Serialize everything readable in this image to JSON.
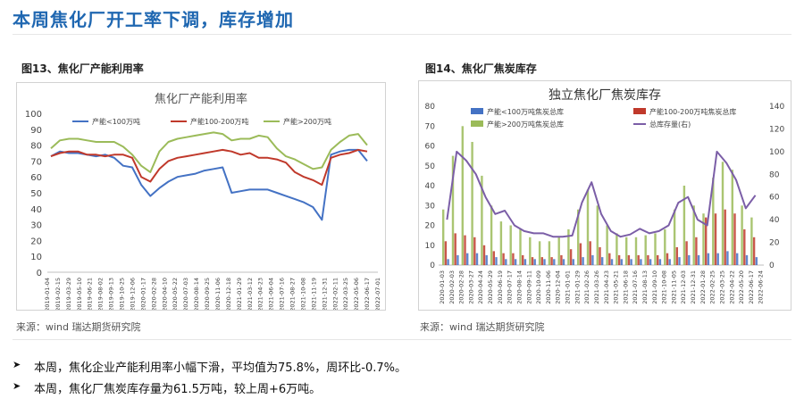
{
  "page": {
    "title": "本周焦化厂开工率下调，库存增加",
    "bullets": [
      "本周，焦化企业产能利用率小幅下滑，平均值为75.8%，周环比-0.7%。",
      "本周，焦化厂焦炭库存量为61.5万吨，较上周+6万吨。"
    ],
    "bullet_icon": "arrow-right-icon"
  },
  "left_panel": {
    "caption": "图13、焦化厂产能利用率",
    "source": "来源：wind   瑞达期货研究院"
  },
  "right_panel": {
    "caption": "图14、焦化厂焦炭库存",
    "source": "来源：wind   瑞达期货研究院"
  },
  "chart_data": [
    {
      "type": "line",
      "title": "焦化厂产能利用率",
      "xlabel": "",
      "ylabel": "",
      "ylim": [
        0,
        100
      ],
      "yticks": [
        0,
        10,
        20,
        30,
        40,
        50,
        60,
        70,
        80,
        90,
        100
      ],
      "grid": false,
      "legend_position": "top",
      "x_tick_labels": [
        "2019-01-04",
        "2019-02-15",
        "2019-03-29",
        "2019-05-10",
        "2019-06-21",
        "2019-08-02",
        "2019-09-13",
        "2019-10-25",
        "2019-12-06",
        "2020-01-17",
        "2020-02-28",
        "2020-04-10",
        "2020-05-22",
        "2020-07-03",
        "2020-08-14",
        "2020-09-25",
        "2020-11-06",
        "2020-12-18",
        "2021-01-29",
        "2021-03-12",
        "2021-04-23",
        "2021-06-04",
        "2021-07-16",
        "2021-08-27",
        "2021-10-08",
        "2021-11-19",
        "2021-12-31",
        "2022-02-11",
        "2022-03-25",
        "2022-05-06",
        "2022-06-17"
      ],
      "x_tick_last": "2022-07-01",
      "series": [
        {
          "name": "产能<100万吨",
          "color": "#4472c4",
          "values": [
            73,
            76,
            75,
            75,
            74,
            73,
            74,
            72,
            67,
            66,
            55,
            48,
            53,
            57,
            60,
            61,
            62,
            64,
            65,
            66,
            50,
            51,
            52,
            52,
            52,
            50,
            48,
            46,
            44,
            41,
            33,
            74,
            76,
            77,
            77,
            70
          ]
        },
        {
          "name": "产能100-200万吨",
          "color": "#c0392b",
          "values": [
            73,
            75,
            76,
            76,
            74,
            74,
            73,
            74,
            74,
            72,
            60,
            57,
            65,
            70,
            72,
            73,
            74,
            75,
            76,
            77,
            76,
            74,
            75,
            72,
            72,
            71,
            69,
            63,
            60,
            58,
            55,
            72,
            74,
            75,
            77,
            76
          ]
        },
        {
          "name": "产能>200万吨",
          "color": "#9bbb59",
          "values": [
            78,
            83,
            84,
            84,
            83,
            82,
            82,
            82,
            79,
            74,
            67,
            63,
            76,
            82,
            84,
            85,
            86,
            87,
            88,
            87,
            83,
            84,
            84,
            86,
            85,
            78,
            73,
            71,
            68,
            65,
            66,
            77,
            82,
            86,
            87,
            80
          ]
        }
      ]
    },
    {
      "type": "bar",
      "title": "独立焦化厂焦炭库存",
      "xlabel": "",
      "ylabel": "",
      "ylim": [
        0,
        80
      ],
      "yticks": [
        0,
        10,
        20,
        30,
        40,
        50,
        60,
        70,
        80
      ],
      "y2lim": [
        0,
        140
      ],
      "y2ticks": [
        0,
        20,
        40,
        60,
        80,
        100,
        120,
        140
      ],
      "grid": false,
      "legend_position": "top",
      "x_tick_labels": [
        "2020-01-03",
        "2020-02-03",
        "2020-02-28",
        "2020-03-27",
        "2020-04-24",
        "2020-05-29",
        "2020-06-19",
        "2020-07-17",
        "2020-08-14",
        "2020-09-11",
        "2020-10-09",
        "2020-11-06",
        "2020-12-04",
        "2021-01-01",
        "2021-01-29",
        "2021-02-26",
        "2021-03-26",
        "2021-04-23",
        "2021-05-21",
        "2021-06-18",
        "2021-07-16",
        "2021-08-13",
        "2021-09-10",
        "2021-10-08",
        "2021-11-05",
        "2021-12-03",
        "2021-12-31",
        "2022-01-28",
        "2022-02-25",
        "2022-03-25",
        "2022-04-22",
        "2022-05-20",
        "2022-06-17"
      ],
      "x_tick_last": "2022-06-24",
      "series": [
        {
          "name": "产能<100万吨焦炭总库",
          "color": "#4472c4",
          "axis": "left",
          "values": [
            3,
            5,
            6,
            6,
            5,
            4,
            3,
            3,
            3,
            3,
            3,
            3,
            3,
            3,
            4,
            5,
            4,
            3,
            3,
            3,
            3,
            3,
            3,
            3,
            4,
            5,
            5,
            6,
            6,
            7,
            6,
            5,
            4
          ]
        },
        {
          "name": "产能100-200万吨焦炭总库",
          "color": "#c0392b",
          "axis": "left",
          "values": [
            12,
            16,
            15,
            14,
            10,
            7,
            6,
            6,
            5,
            4,
            4,
            4,
            5,
            8,
            11,
            12,
            9,
            6,
            5,
            5,
            5,
            5,
            5,
            6,
            9,
            12,
            14,
            24,
            26,
            28,
            26,
            18,
            14
          ]
        },
        {
          "name": "产能>200万吨焦炭总库",
          "color": "#9bbb59",
          "axis": "left",
          "values": [
            28,
            55,
            70,
            62,
            45,
            30,
            22,
            20,
            18,
            14,
            12,
            12,
            14,
            18,
            28,
            38,
            30,
            20,
            16,
            14,
            14,
            15,
            16,
            18,
            28,
            40,
            30,
            26,
            44,
            52,
            48,
            30,
            24
          ]
        },
        {
          "name": "总库存量(右)",
          "color": "#7b5ea7",
          "axis": "right",
          "type": "line",
          "values": [
            40,
            100,
            92,
            80,
            60,
            45,
            48,
            35,
            30,
            28,
            28,
            25,
            25,
            26,
            55,
            73,
            45,
            30,
            25,
            27,
            32,
            28,
            30,
            35,
            55,
            60,
            40,
            35,
            100,
            90,
            75,
            50,
            61.5
          ]
        }
      ]
    }
  ]
}
